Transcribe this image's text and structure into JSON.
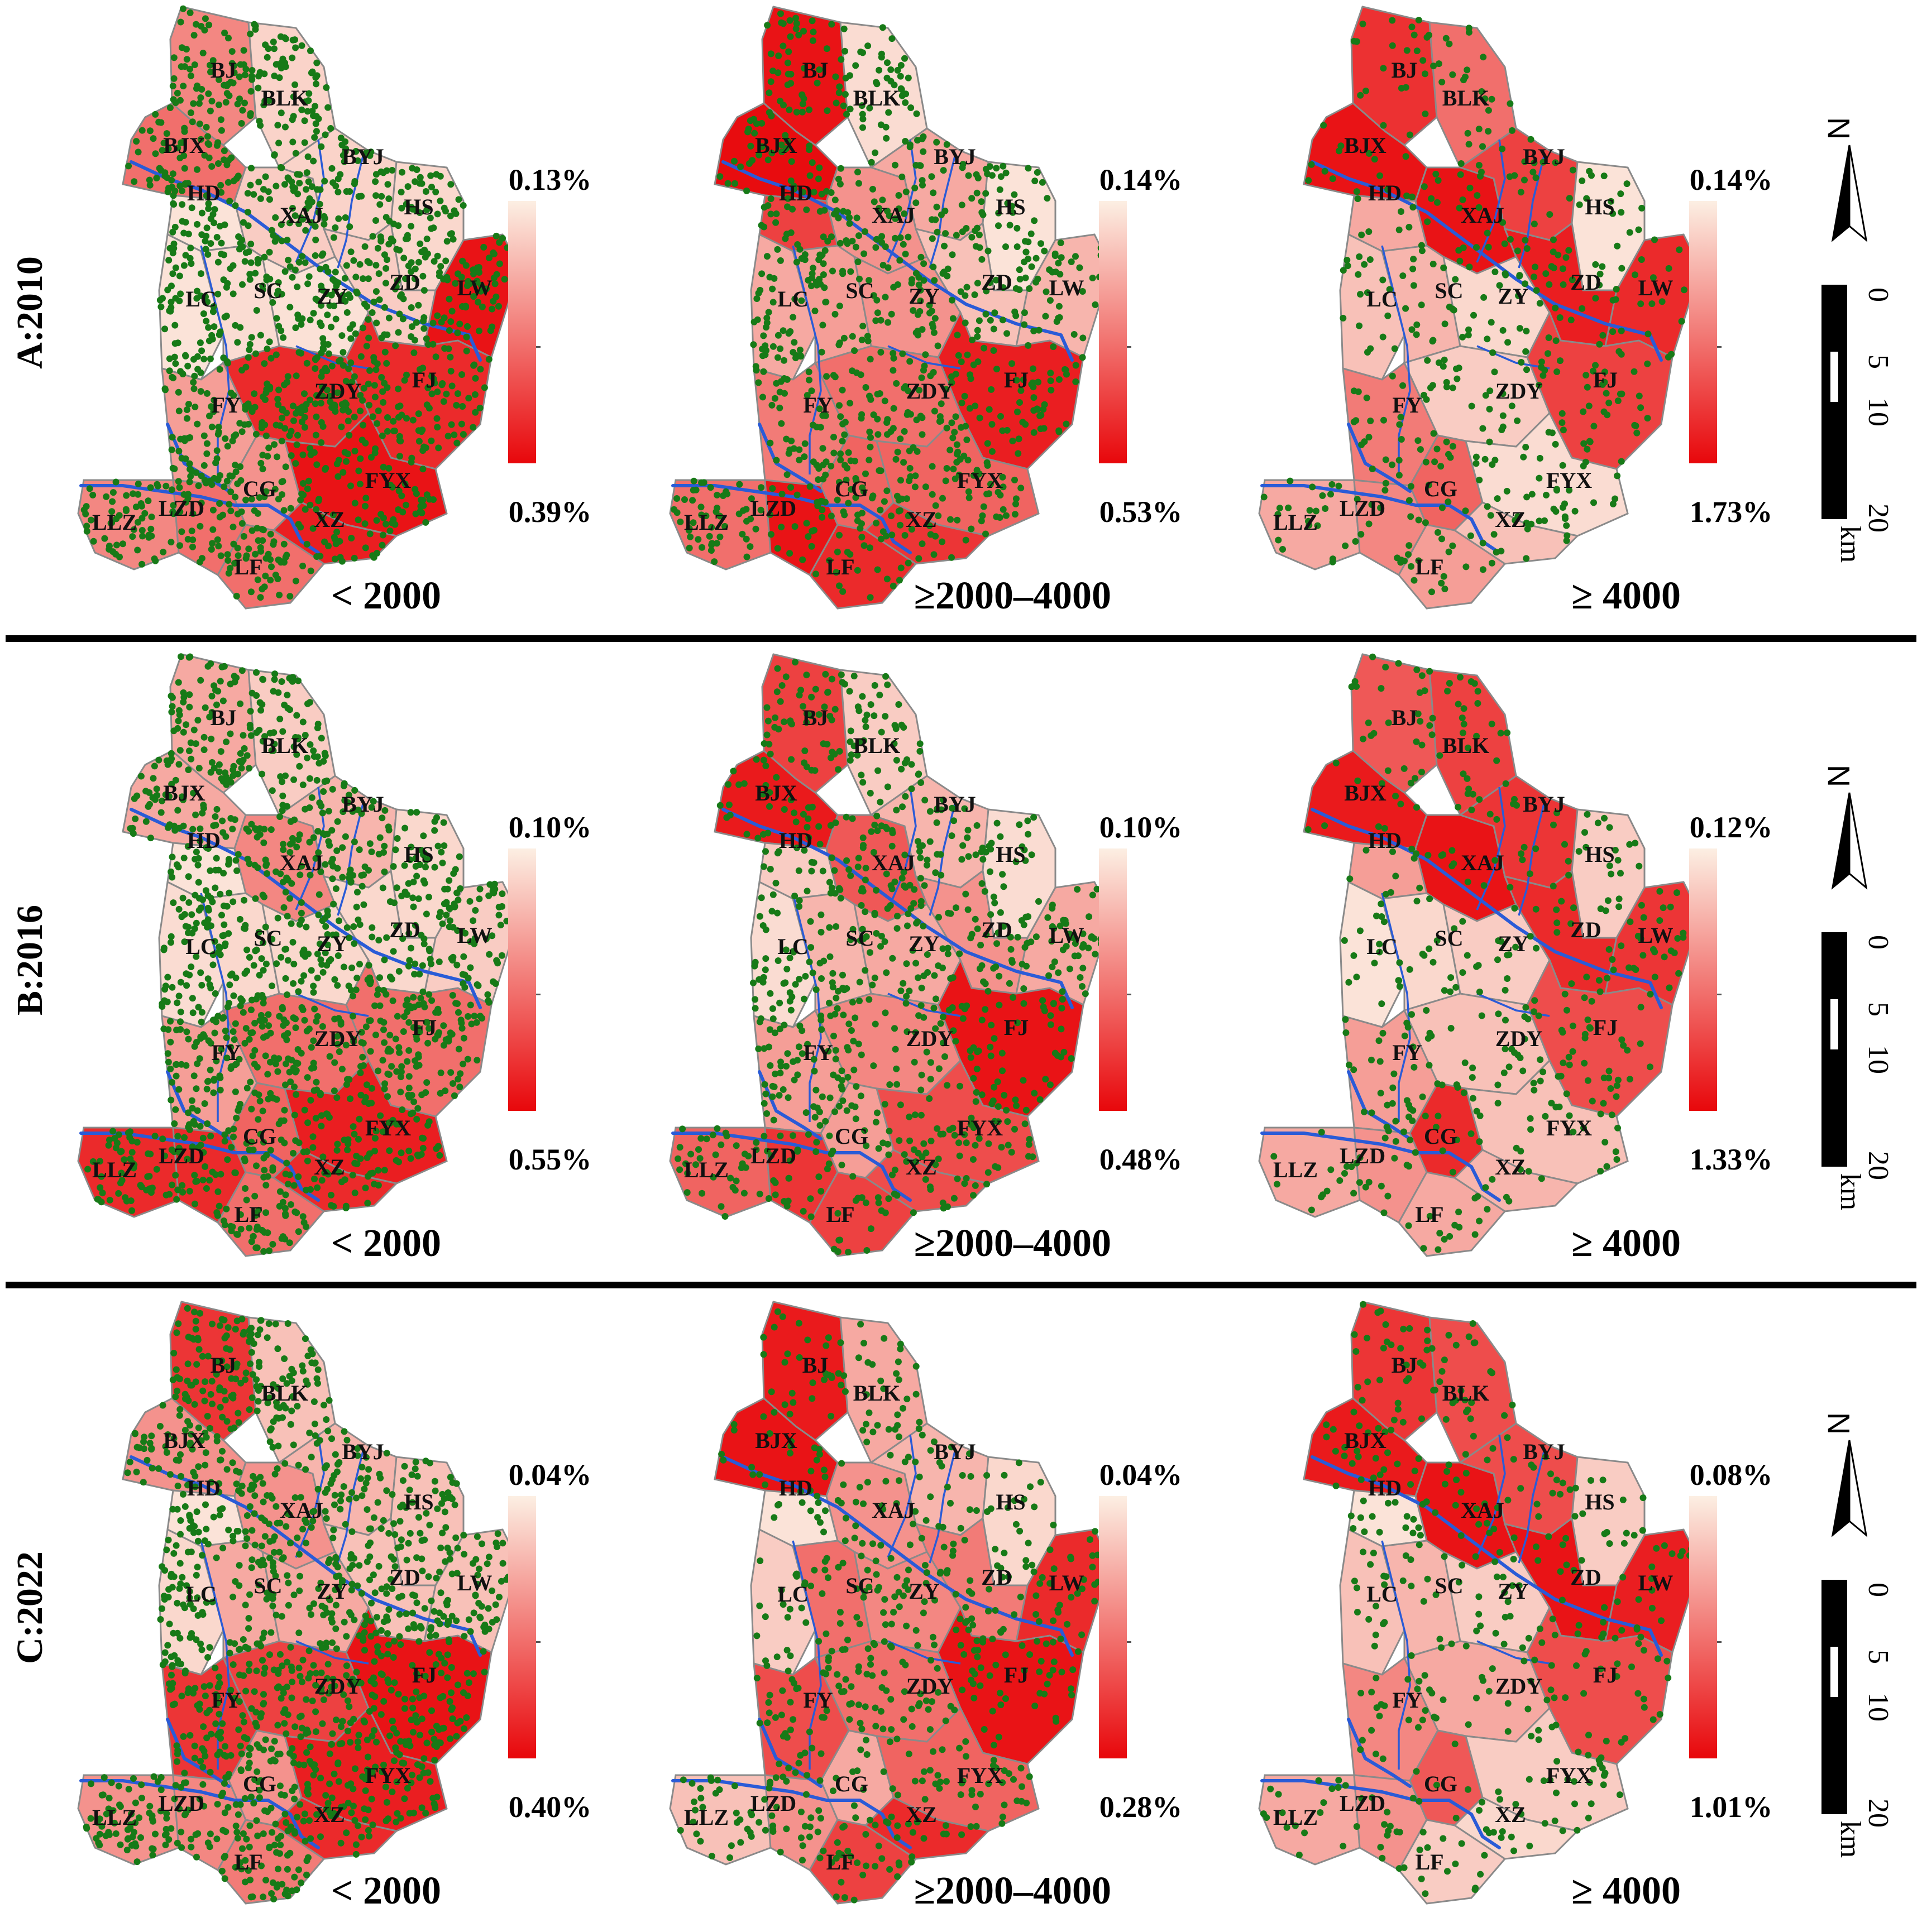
{
  "colors": {
    "low": "#fcefe3",
    "high": "#e8070b",
    "dot": "#177a17",
    "river": "#2a5bd7"
  },
  "towns": [
    "BJ",
    "BLK",
    "BJX",
    "BYJ",
    "HD",
    "XAJ",
    "HS",
    "LC",
    "SC",
    "ZY",
    "ZD",
    "LW",
    "FY",
    "ZDY",
    "FJ",
    "LLZ",
    "LZD",
    "CG",
    "FYX",
    "XZ",
    "LF"
  ],
  "rows": [
    {
      "label": "A:2010",
      "panels": [
        {
          "class": "< 2000",
          "legend_min": "0.13%",
          "legend_max": "0.39%",
          "dots": 1300,
          "levels": [
            0.45,
            0.12,
            0.55,
            0.12,
            0.05,
            0.15,
            0.1,
            0.05,
            0.08,
            0.06,
            0.15,
            0.95,
            0.35,
            0.85,
            0.85,
            0.45,
            0.55,
            0.4,
            0.95,
            0.9,
            0.55
          ]
        },
        {
          "class": "≥2000–4000",
          "legend_min": "0.14%",
          "legend_max": "0.53%",
          "dots": 900,
          "levels": [
            0.95,
            0.08,
            0.98,
            0.3,
            0.75,
            0.4,
            0.05,
            0.3,
            0.35,
            0.4,
            0.2,
            0.25,
            0.5,
            0.55,
            0.9,
            0.55,
            0.95,
            0.6,
            0.6,
            0.8,
            0.85
          ]
        },
        {
          "class": "≥ 4000",
          "legend_min": "0.14%",
          "legend_max": "1.73%",
          "dots": 450,
          "levels": [
            0.82,
            0.55,
            0.95,
            0.75,
            0.3,
            0.95,
            0.05,
            0.2,
            0.25,
            0.1,
            0.9,
            0.85,
            0.5,
            0.15,
            0.75,
            0.3,
            0.45,
            0.6,
            0.08,
            0.2,
            0.35
          ]
        }
      ]
    },
    {
      "label": "B:2016",
      "panels": [
        {
          "class": "< 2000",
          "legend_min": "0.10%",
          "legend_max": "0.55%",
          "dots": 1300,
          "levels": [
            0.3,
            0.15,
            0.3,
            0.25,
            0.05,
            0.45,
            0.1,
            0.08,
            0.1,
            0.1,
            0.1,
            0.15,
            0.35,
            0.55,
            0.55,
            0.85,
            0.85,
            0.6,
            0.9,
            0.85,
            0.55
          ]
        },
        {
          "class": "≥2000–4000",
          "legend_min": "0.10%",
          "legend_max": "0.48%",
          "dots": 800,
          "levels": [
            0.75,
            0.15,
            0.92,
            0.25,
            0.15,
            0.65,
            0.08,
            0.08,
            0.25,
            0.3,
            0.4,
            0.3,
            0.35,
            0.45,
            0.95,
            0.6,
            0.8,
            0.35,
            0.7,
            0.7,
            0.75
          ]
        },
        {
          "class": "≥ 4000",
          "legend_min": "0.12%",
          "legend_max": "1.33%",
          "dots": 400,
          "levels": [
            0.65,
            0.75,
            0.92,
            0.8,
            0.35,
            0.95,
            0.15,
            0.05,
            0.1,
            0.15,
            0.85,
            0.8,
            0.35,
            0.2,
            0.7,
            0.3,
            0.4,
            0.85,
            0.2,
            0.25,
            0.3
          ]
        }
      ]
    },
    {
      "label": "C:2022",
      "panels": [
        {
          "class": "< 2000",
          "legend_min": "0.04%",
          "legend_max": "0.40%",
          "dots": 1300,
          "levels": [
            0.8,
            0.2,
            0.4,
            0.25,
            0.05,
            0.4,
            0.2,
            0.1,
            0.3,
            0.3,
            0.2,
            0.2,
            0.8,
            0.75,
            0.95,
            0.4,
            0.45,
            0.4,
            0.9,
            0.85,
            0.5
          ]
        },
        {
          "class": "≥2000–4000",
          "legend_min": "0.04%",
          "legend_max": "0.28%",
          "dots": 600,
          "levels": [
            0.92,
            0.3,
            0.95,
            0.25,
            0.05,
            0.4,
            0.1,
            0.15,
            0.55,
            0.45,
            0.5,
            0.85,
            0.7,
            0.55,
            0.95,
            0.2,
            0.4,
            0.3,
            0.6,
            0.85,
            0.75
          ]
        },
        {
          "class": "≥ 4000",
          "legend_min": "0.08%",
          "legend_max": "1.01%",
          "dots": 400,
          "levels": [
            0.8,
            0.7,
            0.92,
            0.7,
            0.05,
            0.95,
            0.15,
            0.2,
            0.25,
            0.15,
            0.95,
            0.9,
            0.45,
            0.3,
            0.7,
            0.3,
            0.4,
            0.65,
            0.15,
            0.1,
            0.15
          ]
        }
      ]
    }
  ],
  "north_label": "N",
  "scale": {
    "ticks": [
      "0",
      "5",
      "10",
      "20"
    ],
    "unit": "km"
  }
}
